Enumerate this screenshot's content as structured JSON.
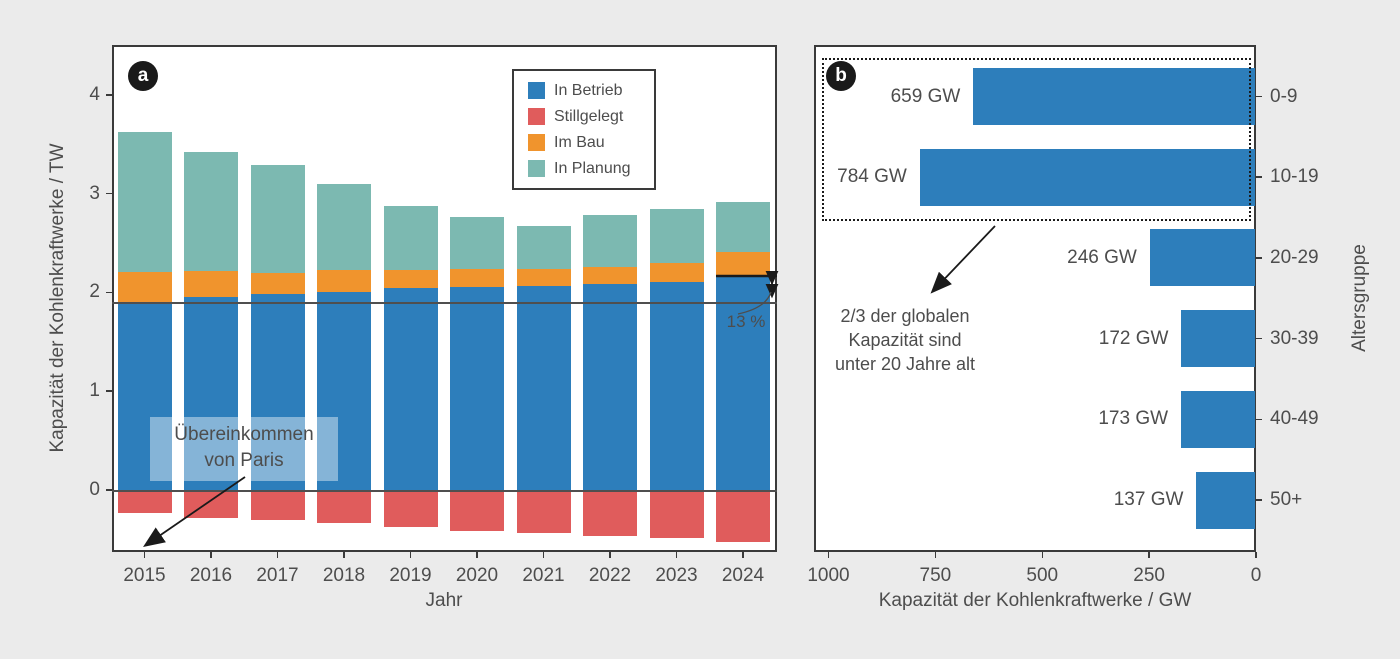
{
  "figure": {
    "background_color": "#ebebeb",
    "spine_color": "#3a3a3a",
    "text_color": "#4d4d4d"
  },
  "panel_a": {
    "label": "a",
    "ylabel": "Kapazität der Kohlenkraftwerke / TW",
    "xlabel": "Jahr",
    "paris_annotation": {
      "line1": "Übereinkommen",
      "line2": "von Paris"
    },
    "growth_annotation": "13 %"
  },
  "panel_b": {
    "label": "b",
    "xlabel": "Kapazität der Kohlenkraftwerke / GW",
    "ylabel": "Altersgruppe",
    "age_annotation": {
      "line1": "2/3 der globalen",
      "line2": "Kapazität sind",
      "line3": "unter 20 Jahre alt"
    }
  },
  "chart_data": [
    {
      "id": "a",
      "type": "bar",
      "stacked": true,
      "title": "",
      "xlabel": "Jahr",
      "ylabel": "Kapazität der Kohlenkraftwerke / TW",
      "categories": [
        "2015",
        "2016",
        "2017",
        "2018",
        "2019",
        "2020",
        "2021",
        "2022",
        "2023",
        "2024"
      ],
      "series": [
        {
          "name": "In Betrieb",
          "color": "#2d7ebb",
          "values": [
            1.9,
            1.95,
            1.98,
            2.0,
            2.04,
            2.05,
            2.06,
            2.08,
            2.11,
            2.16
          ]
        },
        {
          "name": "Stillgelegt",
          "color": "#e05c5c",
          "values": [
            -0.23,
            -0.28,
            -0.3,
            -0.33,
            -0.37,
            -0.42,
            -0.44,
            -0.47,
            -0.49,
            -0.53
          ]
        },
        {
          "name": "Im Bau",
          "color": "#f0942d",
          "values": [
            0.31,
            0.27,
            0.22,
            0.23,
            0.19,
            0.19,
            0.18,
            0.18,
            0.19,
            0.25
          ]
        },
        {
          "name": "In Planung",
          "color": "#7cb9b1",
          "values": [
            1.41,
            1.2,
            1.09,
            0.87,
            0.64,
            0.52,
            0.43,
            0.52,
            0.54,
            0.5
          ]
        }
      ],
      "yticks": [
        0,
        1,
        2,
        3,
        4
      ],
      "ylim": [
        -0.63,
        4.5
      ],
      "grid": false,
      "legend_position": "upper right inside",
      "reference_line_y": 1.9,
      "annotations": [
        "Übereinkommen von Paris",
        "13 %"
      ]
    },
    {
      "id": "b",
      "type": "barh",
      "title": "",
      "xlabel": "Kapazität der Kohlenkraftwerke / GW",
      "ylabel": "Altersgruppe",
      "categories": [
        "0-9",
        "10-19",
        "20-29",
        "30-39",
        "40-49",
        "50+"
      ],
      "values": [
        659,
        784,
        246,
        172,
        173,
        137
      ],
      "bar_labels": [
        "659 GW",
        "784 GW",
        "246 GW",
        "172 GW",
        "173 GW",
        "137 GW"
      ],
      "bar_color": "#2d7ebb",
      "xticks": [
        1000,
        750,
        500,
        250,
        0
      ],
      "xlim": [
        1034,
        0
      ],
      "x_reversed": true,
      "grid": false,
      "annotations": [
        "2/3 der globalen Kapazität sind unter 20 Jahre alt"
      ]
    }
  ]
}
